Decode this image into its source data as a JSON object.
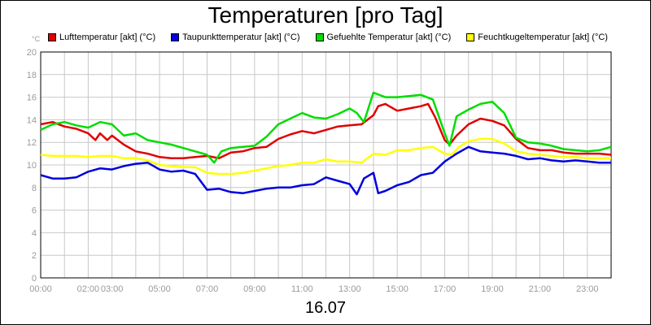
{
  "chart_data": {
    "type": "line",
    "title": "Temperaturen [pro Tag]",
    "xlabel": "16.07",
    "ylabel": "°C",
    "ylim": [
      0,
      20
    ],
    "xlim": [
      0,
      24
    ],
    "y_ticks": [
      "0",
      "2",
      "4",
      "6",
      "8",
      "10",
      "12",
      "14",
      "16",
      "18",
      "20"
    ],
    "x_ticks": [
      {
        "t": 0,
        "label": "00:00"
      },
      {
        "t": 2,
        "label": "02:00"
      },
      {
        "t": 3,
        "label": "03:00"
      },
      {
        "t": 5,
        "label": "05:00"
      },
      {
        "t": 7,
        "label": "07:00"
      },
      {
        "t": 9,
        "label": "09:00"
      },
      {
        "t": 11,
        "label": "11:00"
      },
      {
        "t": 13,
        "label": "13:00"
      },
      {
        "t": 15,
        "label": "15:00"
      },
      {
        "t": 17,
        "label": "17:00"
      },
      {
        "t": 19,
        "label": "19:00"
      },
      {
        "t": 21,
        "label": "21:00"
      },
      {
        "t": 23,
        "label": "23:00"
      }
    ],
    "grid": true,
    "legend_position": "top",
    "series": [
      {
        "name": "Lufttemperatur [akt] (°C)",
        "color": "#e00000",
        "points": [
          [
            0,
            13.6
          ],
          [
            0.5,
            13.8
          ],
          [
            1,
            13.4
          ],
          [
            1.5,
            13.2
          ],
          [
            2,
            12.8
          ],
          [
            2.3,
            12.2
          ],
          [
            2.5,
            12.8
          ],
          [
            2.8,
            12.2
          ],
          [
            3,
            12.6
          ],
          [
            3.5,
            11.8
          ],
          [
            4,
            11.2
          ],
          [
            4.5,
            11.0
          ],
          [
            5,
            10.7
          ],
          [
            5.5,
            10.6
          ],
          [
            6,
            10.6
          ],
          [
            6.5,
            10.7
          ],
          [
            7,
            10.8
          ],
          [
            7.5,
            10.6
          ],
          [
            8,
            11.1
          ],
          [
            8.5,
            11.2
          ],
          [
            9,
            11.5
          ],
          [
            9.5,
            11.6
          ],
          [
            10,
            12.3
          ],
          [
            10.5,
            12.7
          ],
          [
            11,
            13.0
          ],
          [
            11.5,
            12.8
          ],
          [
            12,
            13.1
          ],
          [
            12.5,
            13.4
          ],
          [
            13,
            13.5
          ],
          [
            13.5,
            13.6
          ],
          [
            14,
            14.4
          ],
          [
            14.2,
            15.2
          ],
          [
            14.5,
            15.4
          ],
          [
            15,
            14.8
          ],
          [
            15.5,
            15.0
          ],
          [
            16,
            15.2
          ],
          [
            16.3,
            15.4
          ],
          [
            16.6,
            14.2
          ],
          [
            17,
            12.2
          ],
          [
            17.2,
            11.8
          ],
          [
            17.5,
            12.6
          ],
          [
            18,
            13.6
          ],
          [
            18.5,
            14.1
          ],
          [
            19,
            13.9
          ],
          [
            19.5,
            13.5
          ],
          [
            20,
            12.3
          ],
          [
            20.5,
            11.5
          ],
          [
            21,
            11.3
          ],
          [
            21.5,
            11.3
          ],
          [
            22,
            11.1
          ],
          [
            22.5,
            11.0
          ],
          [
            23,
            11.0
          ],
          [
            23.5,
            11.0
          ],
          [
            24,
            10.9
          ]
        ]
      },
      {
        "name": "Taupunkttemperatur [akt] (°C)",
        "color": "#0000dd",
        "points": [
          [
            0,
            9.1
          ],
          [
            0.5,
            8.8
          ],
          [
            1,
            8.8
          ],
          [
            1.5,
            8.9
          ],
          [
            2,
            9.4
          ],
          [
            2.5,
            9.7
          ],
          [
            3,
            9.6
          ],
          [
            3.5,
            9.9
          ],
          [
            4,
            10.1
          ],
          [
            4.5,
            10.2
          ],
          [
            5,
            9.6
          ],
          [
            5.5,
            9.4
          ],
          [
            6,
            9.5
          ],
          [
            6.5,
            9.2
          ],
          [
            7,
            7.8
          ],
          [
            7.5,
            7.9
          ],
          [
            8,
            7.6
          ],
          [
            8.5,
            7.5
          ],
          [
            9,
            7.7
          ],
          [
            9.5,
            7.9
          ],
          [
            10,
            8.0
          ],
          [
            10.5,
            8.0
          ],
          [
            11,
            8.2
          ],
          [
            11.5,
            8.3
          ],
          [
            12,
            8.9
          ],
          [
            12.5,
            8.6
          ],
          [
            13,
            8.3
          ],
          [
            13.3,
            7.4
          ],
          [
            13.6,
            8.8
          ],
          [
            14,
            9.3
          ],
          [
            14.2,
            7.5
          ],
          [
            14.5,
            7.7
          ],
          [
            15,
            8.2
          ],
          [
            15.5,
            8.5
          ],
          [
            16,
            9.1
          ],
          [
            16.5,
            9.3
          ],
          [
            17,
            10.3
          ],
          [
            17.5,
            11.0
          ],
          [
            18,
            11.6
          ],
          [
            18.5,
            11.2
          ],
          [
            19,
            11.1
          ],
          [
            19.5,
            11.0
          ],
          [
            20,
            10.8
          ],
          [
            20.5,
            10.5
          ],
          [
            21,
            10.6
          ],
          [
            21.5,
            10.4
          ],
          [
            22,
            10.3
          ],
          [
            22.5,
            10.4
          ],
          [
            23,
            10.3
          ],
          [
            23.5,
            10.2
          ],
          [
            24,
            10.2
          ]
        ]
      },
      {
        "name": "Gefuehlte Temperatur [akt] (°C)",
        "color": "#00dd00",
        "points": [
          [
            0,
            13.1
          ],
          [
            0.5,
            13.6
          ],
          [
            1,
            13.8
          ],
          [
            1.5,
            13.5
          ],
          [
            2,
            13.3
          ],
          [
            2.5,
            13.8
          ],
          [
            3,
            13.6
          ],
          [
            3.5,
            12.6
          ],
          [
            4,
            12.8
          ],
          [
            4.5,
            12.2
          ],
          [
            5,
            12.0
          ],
          [
            5.5,
            11.8
          ],
          [
            6,
            11.5
          ],
          [
            6.5,
            11.2
          ],
          [
            7,
            10.9
          ],
          [
            7.3,
            10.2
          ],
          [
            7.6,
            11.2
          ],
          [
            8,
            11.5
          ],
          [
            8.5,
            11.6
          ],
          [
            9,
            11.7
          ],
          [
            9.5,
            12.5
          ],
          [
            10,
            13.6
          ],
          [
            10.5,
            14.1
          ],
          [
            11,
            14.6
          ],
          [
            11.5,
            14.2
          ],
          [
            12,
            14.1
          ],
          [
            12.5,
            14.5
          ],
          [
            13,
            15.0
          ],
          [
            13.3,
            14.6
          ],
          [
            13.6,
            13.8
          ],
          [
            14,
            16.4
          ],
          [
            14.5,
            16.0
          ],
          [
            15,
            16.0
          ],
          [
            15.5,
            16.1
          ],
          [
            16,
            16.2
          ],
          [
            16.5,
            15.8
          ],
          [
            17,
            12.8
          ],
          [
            17.2,
            11.7
          ],
          [
            17.5,
            14.3
          ],
          [
            18,
            14.9
          ],
          [
            18.5,
            15.4
          ],
          [
            19,
            15.6
          ],
          [
            19.5,
            14.6
          ],
          [
            20,
            12.4
          ],
          [
            20.5,
            12.0
          ],
          [
            21,
            11.9
          ],
          [
            21.5,
            11.7
          ],
          [
            22,
            11.4
          ],
          [
            22.5,
            11.3
          ],
          [
            23,
            11.2
          ],
          [
            23.5,
            11.3
          ],
          [
            24,
            11.6
          ]
        ]
      },
      {
        "name": "Feuchtkugeltemperatur [akt] (°C)",
        "color": "#ffff00",
        "points": [
          [
            0,
            10.9
          ],
          [
            0.5,
            10.8
          ],
          [
            1,
            10.8
          ],
          [
            1.5,
            10.8
          ],
          [
            2,
            10.7
          ],
          [
            2.5,
            10.8
          ],
          [
            3,
            10.8
          ],
          [
            3.5,
            10.6
          ],
          [
            4,
            10.6
          ],
          [
            4.5,
            10.4
          ],
          [
            5,
            10.0
          ],
          [
            5.5,
            9.9
          ],
          [
            6,
            9.8
          ],
          [
            6.5,
            9.8
          ],
          [
            7,
            9.3
          ],
          [
            7.5,
            9.2
          ],
          [
            8,
            9.2
          ],
          [
            8.5,
            9.3
          ],
          [
            9,
            9.5
          ],
          [
            9.5,
            9.7
          ],
          [
            10,
            9.9
          ],
          [
            10.5,
            10.0
          ],
          [
            11,
            10.2
          ],
          [
            11.5,
            10.2
          ],
          [
            12,
            10.5
          ],
          [
            12.5,
            10.3
          ],
          [
            13,
            10.3
          ],
          [
            13.5,
            10.2
          ],
          [
            14,
            11.0
          ],
          [
            14.5,
            10.9
          ],
          [
            15,
            11.3
          ],
          [
            15.5,
            11.3
          ],
          [
            16,
            11.5
          ],
          [
            16.5,
            11.6
          ],
          [
            17,
            11.0
          ],
          [
            17.3,
            10.9
          ],
          [
            17.6,
            11.6
          ],
          [
            18,
            12.1
          ],
          [
            18.5,
            12.3
          ],
          [
            19,
            12.3
          ],
          [
            19.5,
            11.9
          ],
          [
            20,
            11.2
          ],
          [
            20.5,
            11.0
          ],
          [
            21,
            10.9
          ],
          [
            21.5,
            10.8
          ],
          [
            22,
            10.7
          ],
          [
            22.5,
            10.7
          ],
          [
            23,
            10.6
          ],
          [
            23.5,
            10.6
          ],
          [
            24,
            10.6
          ]
        ]
      }
    ]
  }
}
